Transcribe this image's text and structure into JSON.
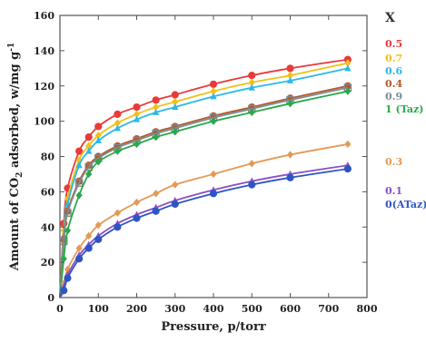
{
  "chart_data": {
    "type": "line",
    "xlabel": "Pressure, p/torr",
    "ylabel_parts": [
      "Amount of CO",
      "2",
      " adsorbed, w/mg g",
      "-1"
    ],
    "xlim": [
      0,
      800
    ],
    "ylim": [
      0,
      160
    ],
    "xticks": [
      0,
      100,
      200,
      300,
      400,
      500,
      600,
      700,
      800
    ],
    "yticks": [
      0,
      20,
      40,
      60,
      80,
      100,
      120,
      140,
      160
    ],
    "legend_title": "X",
    "legend_placement": "right",
    "grid": false,
    "series": [
      {
        "name": "0.5",
        "color": "#e83a3a",
        "marker": "circle",
        "x": [
          10,
          20,
          50,
          75,
          100,
          150,
          200,
          250,
          300,
          400,
          500,
          600,
          750
        ],
        "y": [
          42,
          62,
          83,
          91,
          97,
          104,
          108,
          112,
          115,
          121,
          126,
          130,
          135
        ]
      },
      {
        "name": "0.7",
        "color": "#f2c018",
        "marker": "diamond",
        "x": [
          10,
          20,
          50,
          75,
          100,
          150,
          200,
          250,
          300,
          400,
          500,
          600,
          750
        ],
        "y": [
          38,
          56,
          78,
          86,
          92,
          99,
          104,
          108,
          111,
          117,
          122,
          126,
          133
        ]
      },
      {
        "name": "0.6",
        "color": "#2db8e8",
        "marker": "triangle",
        "x": [
          10,
          20,
          50,
          75,
          100,
          150,
          200,
          250,
          300,
          400,
          500,
          600,
          750
        ],
        "y": [
          35,
          53,
          75,
          83,
          89,
          96,
          101,
          105,
          108,
          114,
          119,
          123,
          130
        ]
      },
      {
        "name": "0.4",
        "color": "#b5572a",
        "marker": "circle",
        "x": [
          10,
          20,
          50,
          75,
          100,
          150,
          200,
          250,
          300,
          400,
          500,
          600,
          750
        ],
        "y": [
          33,
          49,
          66,
          75,
          80,
          86,
          90,
          94,
          97,
          103,
          108,
          113,
          120
        ]
      },
      {
        "name": "0.9",
        "color": "#7d8d92",
        "marker": "square",
        "x": [
          10,
          20,
          50,
          75,
          100,
          150,
          200,
          250,
          300,
          400,
          500,
          600,
          750
        ],
        "y": [
          32,
          48,
          65,
          74,
          79,
          85,
          89,
          93,
          96,
          102,
          107,
          112,
          119
        ]
      },
      {
        "name": "1 (Taz)",
        "color": "#2aa84a",
        "marker": "diamond",
        "x": [
          10,
          20,
          50,
          75,
          100,
          150,
          200,
          250,
          300,
          400,
          500,
          600,
          750
        ],
        "y": [
          22,
          38,
          58,
          70,
          77,
          83,
          87,
          91,
          94,
          100,
          105,
          110,
          117
        ]
      },
      {
        "name": "0.3",
        "color": "#e39a55",
        "marker": "diamond",
        "x": [
          10,
          20,
          50,
          75,
          100,
          150,
          200,
          250,
          300,
          400,
          500,
          600,
          750
        ],
        "y": [
          8,
          16,
          28,
          35,
          41,
          48,
          54,
          59,
          64,
          70,
          76,
          81,
          87
        ]
      },
      {
        "name": "0.1",
        "color": "#8a4fc6",
        "marker": "triangle",
        "x": [
          10,
          20,
          50,
          75,
          100,
          150,
          200,
          250,
          300,
          400,
          500,
          600,
          750
        ],
        "y": [
          6,
          13,
          24,
          30,
          35,
          42,
          47,
          51,
          55,
          61,
          66,
          70,
          75
        ]
      },
      {
        "name": "0(ATaz)",
        "color": "#2f55c4",
        "marker": "circle",
        "x": [
          10,
          20,
          50,
          75,
          100,
          150,
          200,
          250,
          300,
          400,
          500,
          600,
          750
        ],
        "y": [
          4,
          11,
          22,
          28,
          33,
          40,
          45,
          49,
          53,
          59,
          64,
          68,
          73
        ]
      }
    ]
  }
}
